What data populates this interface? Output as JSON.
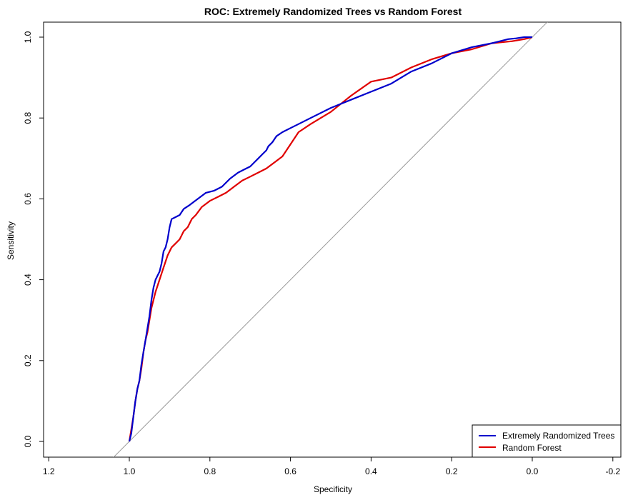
{
  "chart_data": {
    "type": "line",
    "title": "ROC: Extremely Randomized Trees vs Random Forest",
    "xlabel": "Specificity",
    "ylabel": "Sensitivity",
    "xlim": [
      1.2,
      -0.2
    ],
    "ylim": [
      0.0,
      1.0
    ],
    "x_reversed": true,
    "x_ticks": [
      1.2,
      1.0,
      0.8,
      0.6,
      0.4,
      0.2,
      0.0,
      -0.2
    ],
    "x_tick_labels": [
      "1.2",
      "1.0",
      "0.8",
      "0.6",
      "0.4",
      "0.2",
      "0.0",
      "-0.2"
    ],
    "y_ticks": [
      0.0,
      0.2,
      0.4,
      0.6,
      0.8,
      1.0
    ],
    "y_tick_labels": [
      "0.0",
      "0.2",
      "0.4",
      "0.6",
      "0.8",
      "1.0"
    ],
    "grid": false,
    "legend_position": "bottom-right",
    "reference_line": {
      "from": [
        1.0,
        0.0
      ],
      "to": [
        0.0,
        1.0
      ],
      "color": "#999999"
    },
    "series": [
      {
        "name": "Extremely Randomized Trees",
        "color": "#0000cc",
        "x": [
          1.0,
          0.995,
          0.99,
          0.985,
          0.98,
          0.975,
          0.97,
          0.965,
          0.96,
          0.955,
          0.95,
          0.945,
          0.94,
          0.935,
          0.93,
          0.925,
          0.92,
          0.915,
          0.91,
          0.905,
          0.9,
          0.895,
          0.885,
          0.875,
          0.865,
          0.85,
          0.83,
          0.81,
          0.79,
          0.77,
          0.75,
          0.73,
          0.71,
          0.7,
          0.69,
          0.68,
          0.67,
          0.66,
          0.655,
          0.645,
          0.635,
          0.62,
          0.6,
          0.58,
          0.55,
          0.5,
          0.45,
          0.4,
          0.35,
          0.3,
          0.25,
          0.2,
          0.15,
          0.1,
          0.08,
          0.06,
          0.04,
          0.02,
          0.0
        ],
        "y": [
          0.0,
          0.02,
          0.06,
          0.1,
          0.13,
          0.15,
          0.19,
          0.22,
          0.25,
          0.28,
          0.31,
          0.35,
          0.38,
          0.4,
          0.41,
          0.42,
          0.44,
          0.47,
          0.48,
          0.5,
          0.53,
          0.55,
          0.555,
          0.56,
          0.575,
          0.585,
          0.6,
          0.615,
          0.62,
          0.63,
          0.65,
          0.665,
          0.675,
          0.68,
          0.69,
          0.7,
          0.71,
          0.72,
          0.73,
          0.74,
          0.755,
          0.765,
          0.775,
          0.785,
          0.8,
          0.825,
          0.845,
          0.865,
          0.885,
          0.915,
          0.935,
          0.96,
          0.975,
          0.985,
          0.99,
          0.995,
          0.997,
          1.0,
          1.0
        ]
      },
      {
        "name": "Random Forest",
        "color": "#e00000",
        "x": [
          1.0,
          0.995,
          0.99,
          0.985,
          0.98,
          0.975,
          0.97,
          0.965,
          0.96,
          0.955,
          0.945,
          0.935,
          0.925,
          0.915,
          0.905,
          0.895,
          0.885,
          0.875,
          0.865,
          0.855,
          0.845,
          0.835,
          0.82,
          0.8,
          0.78,
          0.76,
          0.74,
          0.72,
          0.7,
          0.68,
          0.66,
          0.64,
          0.62,
          0.6,
          0.58,
          0.55,
          0.5,
          0.45,
          0.4,
          0.35,
          0.3,
          0.25,
          0.2,
          0.15,
          0.1,
          0.05,
          0.02,
          0.0
        ],
        "y": [
          0.0,
          0.03,
          0.06,
          0.1,
          0.13,
          0.15,
          0.18,
          0.22,
          0.25,
          0.27,
          0.33,
          0.37,
          0.4,
          0.43,
          0.46,
          0.48,
          0.49,
          0.5,
          0.52,
          0.53,
          0.55,
          0.56,
          0.58,
          0.595,
          0.605,
          0.615,
          0.63,
          0.645,
          0.655,
          0.665,
          0.675,
          0.69,
          0.705,
          0.735,
          0.765,
          0.785,
          0.815,
          0.855,
          0.89,
          0.9,
          0.925,
          0.945,
          0.96,
          0.97,
          0.985,
          0.99,
          0.995,
          1.0
        ]
      }
    ]
  }
}
